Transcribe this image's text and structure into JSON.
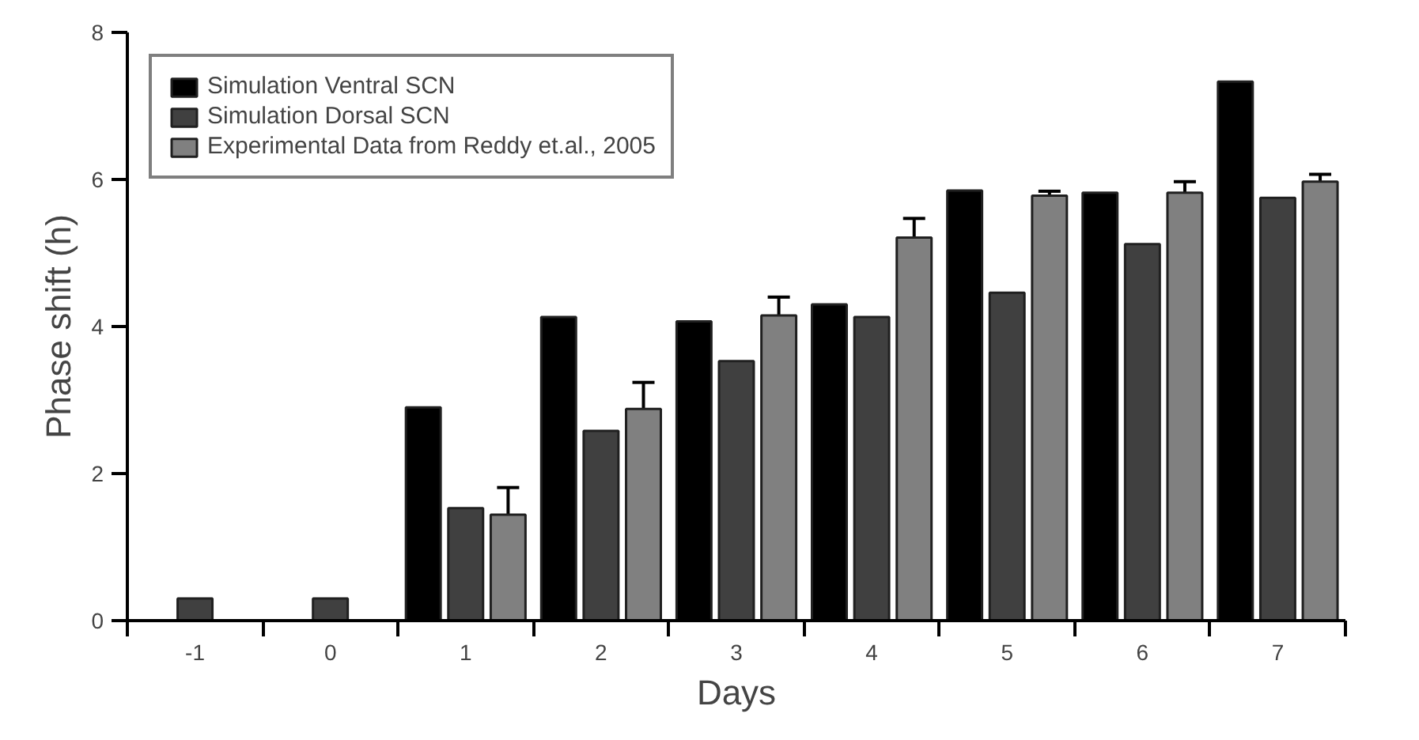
{
  "chart_data": {
    "type": "bar",
    "xlabel": "Days",
    "ylabel": "Phase shift (h)",
    "categories": [
      "-1",
      "0",
      "1",
      "2",
      "3",
      "4",
      "5",
      "6",
      "7"
    ],
    "series": [
      {
        "name": "Simulation Ventral SCN",
        "color": "#000000",
        "values": [
          null,
          null,
          2.9,
          4.13,
          4.07,
          4.3,
          5.85,
          5.82,
          7.33
        ]
      },
      {
        "name": "Simulation Dorsal SCN",
        "color": "#404040",
        "values": [
          0.3,
          0.3,
          1.53,
          2.58,
          3.53,
          4.13,
          4.46,
          5.12,
          5.75
        ]
      },
      {
        "name": "Experimental Data from Reddy et.al., 2005",
        "color": "#808080",
        "values": [
          null,
          null,
          1.44,
          2.88,
          4.15,
          5.21,
          5.78,
          5.82,
          5.97
        ],
        "errors": [
          null,
          null,
          0.37,
          0.36,
          0.25,
          0.26,
          0.06,
          0.15,
          0.1
        ]
      }
    ],
    "ylim": [
      0,
      8
    ],
    "yticks": [
      0,
      2,
      4,
      6,
      8
    ],
    "grid": false,
    "legend": "top left"
  }
}
